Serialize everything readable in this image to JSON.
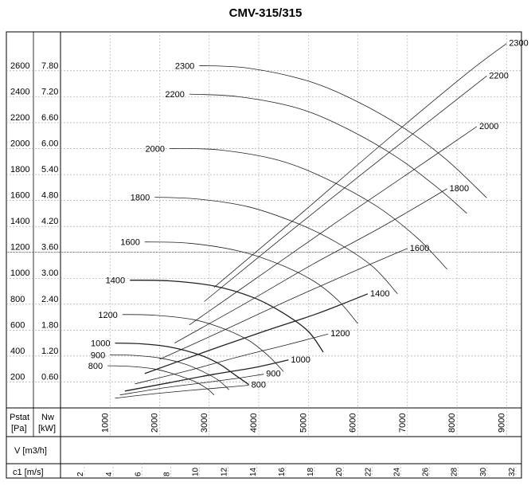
{
  "chart_data": {
    "type": "line",
    "title": "CMV-315/315",
    "axes": {
      "pstat": {
        "label_lines": [
          "Pstat",
          "[Pa]"
        ],
        "ticks": [
          200,
          400,
          600,
          800,
          1000,
          1200,
          1400,
          1600,
          1800,
          2000,
          2200,
          2400,
          2600
        ],
        "range": [
          0,
          2900
        ]
      },
      "nw": {
        "label_lines": [
          "Nw",
          "[kW]"
        ],
        "ticks": [
          "0.60",
          "1.20",
          "1.80",
          "2.40",
          "3.00",
          "3.60",
          "4.20",
          "4.80",
          "5.40",
          "6.00",
          "6.60",
          "7.20",
          "7.80"
        ]
      },
      "flow": {
        "label": "V [m3/h]",
        "ticks": [
          1000,
          2000,
          3000,
          4000,
          5000,
          6000,
          7000,
          8000,
          9000
        ],
        "range": [
          0,
          9300
        ]
      },
      "velocity": {
        "label": "c1 [m/s]",
        "ticks": [
          2,
          4,
          6,
          8,
          10,
          12,
          14,
          16,
          18,
          20,
          22,
          24,
          26,
          28,
          30,
          32
        ]
      }
    },
    "pressure_curves": [
      {
        "rpm": "2300",
        "points": [
          [
            2800,
            2640
          ],
          [
            3800,
            2620
          ],
          [
            5000,
            2520
          ],
          [
            6000,
            2360
          ],
          [
            7000,
            2140
          ],
          [
            7800,
            1910
          ],
          [
            8600,
            1620
          ]
        ]
      },
      {
        "rpm": "2200",
        "points": [
          [
            2600,
            2420
          ],
          [
            3600,
            2400
          ],
          [
            4800,
            2310
          ],
          [
            5800,
            2150
          ],
          [
            6800,
            1930
          ],
          [
            7600,
            1700
          ],
          [
            8200,
            1500
          ]
        ]
      },
      {
        "rpm": "2000",
        "points": [
          [
            2200,
            2000
          ],
          [
            3200,
            1990
          ],
          [
            4400,
            1910
          ],
          [
            5400,
            1760
          ],
          [
            6400,
            1550
          ],
          [
            7200,
            1310
          ],
          [
            7800,
            1070
          ]
        ]
      },
      {
        "rpm": "1800",
        "points": [
          [
            1900,
            1625
          ],
          [
            2800,
            1610
          ],
          [
            3800,
            1550
          ],
          [
            4800,
            1420
          ],
          [
            5600,
            1270
          ],
          [
            6300,
            1090
          ],
          [
            6800,
            880
          ]
        ]
      },
      {
        "rpm": "1600",
        "points": [
          [
            1700,
            1280
          ],
          [
            2600,
            1270
          ],
          [
            3600,
            1210
          ],
          [
            4400,
            1110
          ],
          [
            5100,
            980
          ],
          [
            5600,
            830
          ],
          [
            6000,
            650
          ]
        ]
      },
      {
        "rpm": "1400",
        "points": [
          [
            1400,
            985
          ],
          [
            2200,
            980
          ],
          [
            3100,
            940
          ],
          [
            3900,
            850
          ],
          [
            4500,
            730
          ],
          [
            5000,
            590
          ],
          [
            5300,
            430
          ]
        ]
      },
      {
        "rpm": "1200",
        "points": [
          [
            1250,
            720
          ],
          [
            1900,
            715
          ],
          [
            2700,
            680
          ],
          [
            3300,
            610
          ],
          [
            3800,
            520
          ],
          [
            4200,
            400
          ],
          [
            4500,
            280
          ]
        ]
      },
      {
        "rpm": "1000",
        "points": [
          [
            1100,
            500
          ],
          [
            1600,
            495
          ],
          [
            2200,
            470
          ],
          [
            2800,
            410
          ],
          [
            3200,
            340
          ],
          [
            3500,
            260
          ],
          [
            3800,
            180
          ]
        ]
      },
      {
        "rpm": "900",
        "points": [
          [
            1000,
            410
          ],
          [
            1500,
            405
          ],
          [
            2000,
            385
          ],
          [
            2500,
            340
          ],
          [
            2900,
            275
          ],
          [
            3200,
            210
          ],
          [
            3400,
            140
          ]
        ]
      },
      {
        "rpm": "800",
        "points": [
          [
            950,
            325
          ],
          [
            1400,
            320
          ],
          [
            1900,
            300
          ],
          [
            2300,
            260
          ],
          [
            2700,
            205
          ],
          [
            2950,
            150
          ],
          [
            3100,
            100
          ]
        ]
      }
    ],
    "power_curves": [
      {
        "rpm": "2300",
        "points": [
          [
            3100,
            930
          ],
          [
            4800,
            1480
          ],
          [
            6500,
            2040
          ],
          [
            8200,
            2580
          ],
          [
            9000,
            2810
          ]
        ]
      },
      {
        "rpm": "2200",
        "points": [
          [
            2900,
            820
          ],
          [
            4500,
            1320
          ],
          [
            6100,
            1810
          ],
          [
            7700,
            2290
          ],
          [
            8600,
            2560
          ]
        ]
      },
      {
        "rpm": "2000",
        "points": [
          [
            2600,
            640
          ],
          [
            4100,
            1040
          ],
          [
            5600,
            1440
          ],
          [
            7100,
            1830
          ],
          [
            8400,
            2170
          ]
        ]
      },
      {
        "rpm": "1800",
        "points": [
          [
            2300,
            500
          ],
          [
            3700,
            800
          ],
          [
            5100,
            1110
          ],
          [
            6500,
            1400
          ],
          [
            7800,
            1690
          ]
        ]
      },
      {
        "rpm": "1600",
        "points": [
          [
            2000,
            375
          ],
          [
            3300,
            600
          ],
          [
            4600,
            830
          ],
          [
            5900,
            1050
          ],
          [
            7000,
            1230
          ]
        ]
      },
      {
        "rpm": "1400",
        "points": [
          [
            1700,
            265
          ],
          [
            2900,
            430
          ],
          [
            4100,
            590
          ],
          [
            5200,
            730
          ],
          [
            6200,
            880
          ]
        ]
      },
      {
        "rpm": "1200",
        "points": [
          [
            1500,
            185
          ],
          [
            2600,
            290
          ],
          [
            3600,
            395
          ],
          [
            4600,
            490
          ],
          [
            5400,
            570
          ]
        ]
      },
      {
        "rpm": "1000",
        "points": [
          [
            1300,
            130
          ],
          [
            2200,
            195
          ],
          [
            3100,
            260
          ],
          [
            3900,
            310
          ],
          [
            4600,
            370
          ]
        ]
      },
      {
        "rpm": "900",
        "points": [
          [
            1200,
            100
          ],
          [
            2000,
            150
          ],
          [
            2800,
            190
          ],
          [
            3500,
            225
          ],
          [
            4100,
            260
          ]
        ]
      },
      {
        "rpm": "800",
        "points": [
          [
            1100,
            75
          ],
          [
            1900,
            110
          ],
          [
            2600,
            135
          ],
          [
            3200,
            155
          ],
          [
            3800,
            175
          ]
        ]
      }
    ],
    "grid": true
  }
}
